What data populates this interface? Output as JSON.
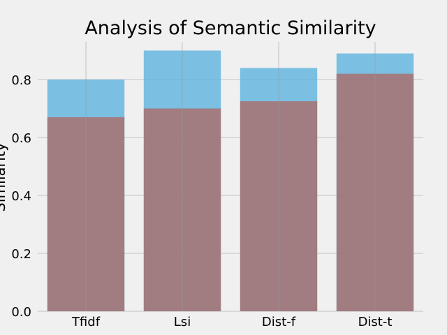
{
  "chart_data": {
    "type": "bar",
    "title": "Analysis of Semantic Similarity",
    "xlabel": "",
    "ylabel": "Similarity",
    "categories": [
      "Tfidf",
      "Lsi",
      "Dist-f",
      "Dist-t"
    ],
    "series": [
      {
        "color": "#5eb3e0",
        "values": [
          0.8,
          0.9,
          0.84,
          0.89
        ]
      },
      {
        "color": "#a8706e",
        "values": [
          0.67,
          0.7,
          0.725,
          0.82
        ]
      }
    ],
    "ylim": [
      0,
      0.93
    ],
    "yticks": [
      "0.0",
      "0.2",
      "0.4",
      "0.6",
      "0.8"
    ],
    "grid": true,
    "background": "#f0f0f0"
  }
}
